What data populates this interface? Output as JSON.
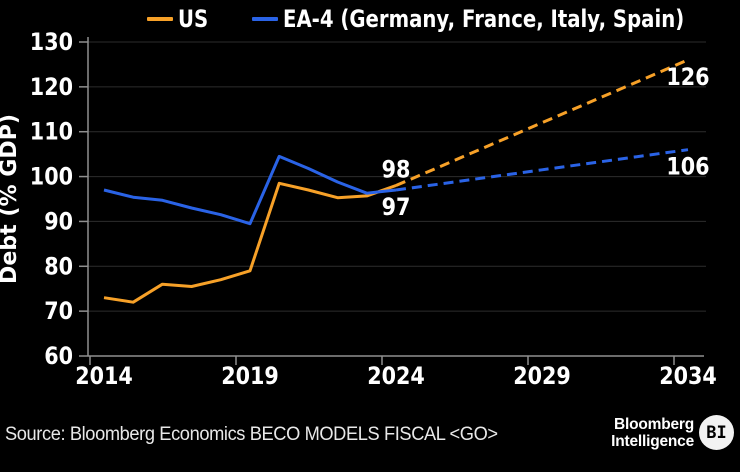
{
  "chart_data": {
    "type": "line",
    "title": "",
    "ylabel": "Debt (% GDP)",
    "ylim": [
      60,
      130
    ],
    "yticks": [
      60,
      70,
      80,
      90,
      100,
      110,
      120,
      130
    ],
    "xticks": [
      2014,
      2019,
      2024,
      2029,
      2034
    ],
    "x_history": [
      2014,
      2015,
      2016,
      2017,
      2018,
      2019,
      2020,
      2021,
      2022,
      2023,
      2024
    ],
    "x_forecast": [
      2024,
      2025,
      2026,
      2027,
      2028,
      2029,
      2030,
      2031,
      2032,
      2033,
      2034
    ],
    "grid": "horizontal",
    "legend_position": "top",
    "series": [
      {
        "id": "us",
        "name": "US",
        "color": "#f7a128",
        "history": [
          73,
          72,
          76,
          75.5,
          77,
          79,
          98.5,
          97,
          95.3,
          95.7,
          98
        ],
        "forecast": [
          98,
          100.8,
          103.6,
          106.4,
          109.2,
          112,
          114.8,
          117.6,
          120.4,
          123.2,
          126
        ]
      },
      {
        "id": "ea4",
        "name": "EA-4 (Germany, France, Italy, Spain)",
        "color": "#2a63e6",
        "history": [
          97,
          95.4,
          94.7,
          93,
          91.5,
          89.5,
          104.5,
          101.8,
          98.8,
          96.3,
          97
        ],
        "forecast": [
          97,
          97.9,
          98.8,
          99.7,
          100.6,
          101.5,
          102.4,
          103.3,
          104.2,
          105.1,
          106
        ]
      }
    ],
    "annotations": [
      {
        "text": "98",
        "series_index": 0,
        "year": 2024,
        "placement": "above"
      },
      {
        "text": "97",
        "series_index": 1,
        "year": 2024,
        "placement": "below"
      },
      {
        "text": "126",
        "series_index": 0,
        "year": 2034,
        "placement": "below"
      },
      {
        "text": "106",
        "series_index": 1,
        "year": 2034,
        "placement": "below"
      }
    ]
  },
  "legend": {
    "items": [
      {
        "label": "US",
        "color": "#f7a128"
      },
      {
        "label": "EA-4 (Germany, France, Italy, Spain)",
        "color": "#2a63e6"
      }
    ]
  },
  "footer": {
    "source": "Source: Bloomberg Economics BECO MODELS FISCAL <GO>",
    "brand_line1": "Bloomberg",
    "brand_line2": "Intelligence",
    "logo_text": "BI"
  },
  "colors": {
    "background": "#000000",
    "text": "#ffffff",
    "grid": "#2d2d2d",
    "axis": "#8f8f8f",
    "source_text": "#e8e8e8",
    "us": "#f7a128",
    "ea4": "#2a63e6"
  }
}
